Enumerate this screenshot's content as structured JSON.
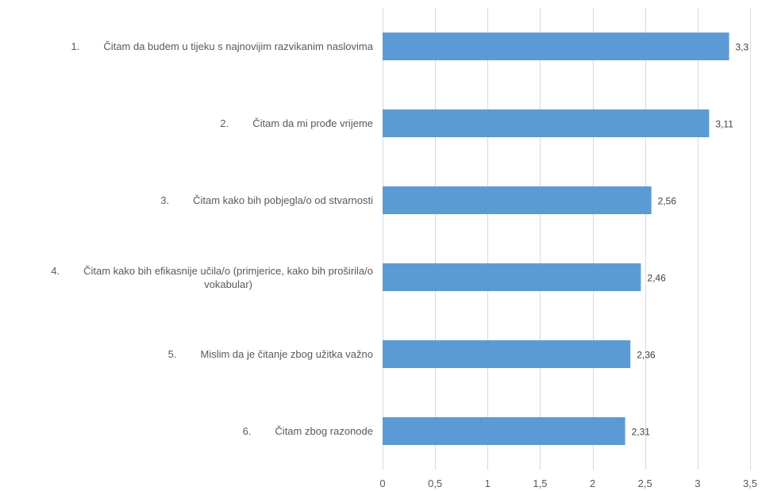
{
  "chart_data": {
    "type": "bar",
    "orientation": "horizontal",
    "categories": [
      {
        "number": "1.",
        "label": "Čitam da budem u tijeku s najnovijim razvikanim naslovima"
      },
      {
        "number": "2.",
        "label": "Čitam da mi prođe vrijeme"
      },
      {
        "number": "3.",
        "label": "Čitam kako bih pobjegla/o od stvarnosti"
      },
      {
        "number": "4.",
        "label": "Čitam kako bih efikasnije učila/o (primjerice, kako bih proširila/o\nvokabular)"
      },
      {
        "number": "5.",
        "label": "Mislim da je čitanje zbog užitka važno"
      },
      {
        "number": "6.",
        "label": "Čitam zbog razonode"
      }
    ],
    "values": [
      3.3,
      3.11,
      2.56,
      2.46,
      2.36,
      2.31
    ],
    "value_labels": [
      "3,3",
      "3,11",
      "2,56",
      "2,46",
      "2,36",
      "2,31"
    ],
    "xlim": [
      0,
      3.5
    ],
    "x_ticks": [
      0,
      0.5,
      1,
      1.5,
      2,
      2.5,
      3,
      3.5
    ],
    "x_tick_labels": [
      "0",
      "0,5",
      "1",
      "1,5",
      "2",
      "2,5",
      "3",
      "3,5"
    ],
    "grid": "vertical",
    "bar_color": "#5B9BD5",
    "grid_color": "#D9D9D9",
    "text_color": "#595959",
    "title": "",
    "xlabel": "",
    "ylabel": ""
  }
}
